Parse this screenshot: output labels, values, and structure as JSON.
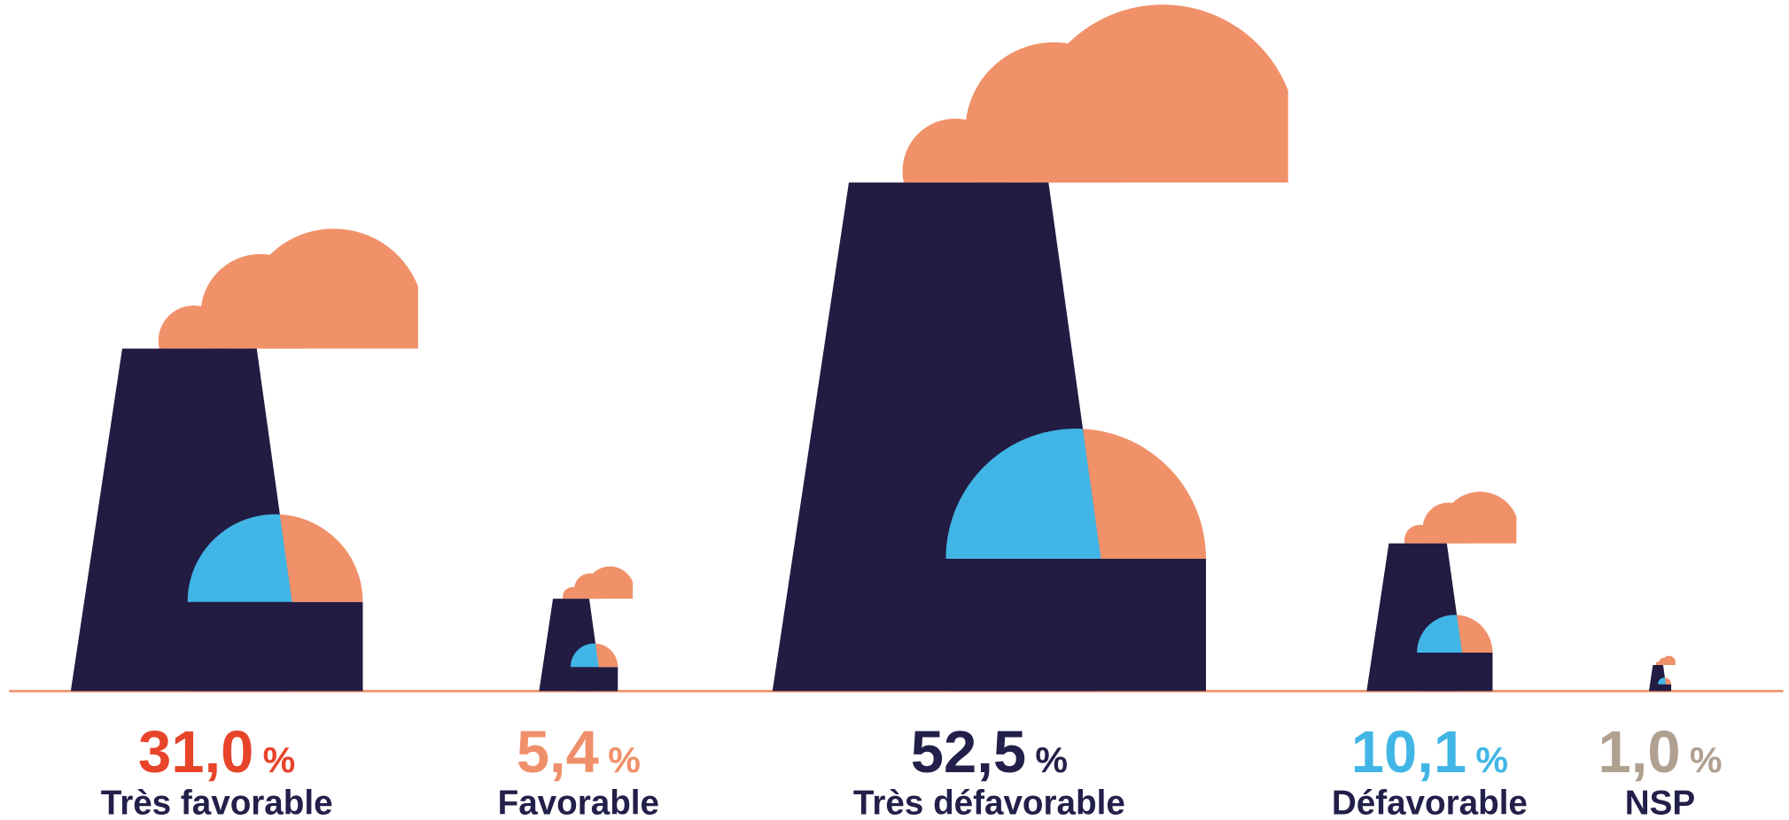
{
  "chart_data": {
    "type": "pictogram",
    "categories": [
      "Très favorable",
      "Favorable",
      "Très défavorable",
      "Défavorable",
      "NSP"
    ],
    "values": [
      31.0,
      5.4,
      52.5,
      10.1,
      1.0
    ],
    "value_labels": [
      "31,0",
      "5,4",
      "52,5",
      "10,1",
      "1,0"
    ],
    "unit": "%",
    "colors": [
      "#e8442a",
      "#f0906a",
      "#22204a",
      "#41b6e6",
      "#b0a090"
    ],
    "icon_colors": {
      "tower": "#221b42",
      "dome_left": "#41b6e6",
      "dome_right": "#f0916a",
      "cloud": "#f0916a",
      "ground": "#f0916a"
    },
    "label_color": "#22204a"
  }
}
